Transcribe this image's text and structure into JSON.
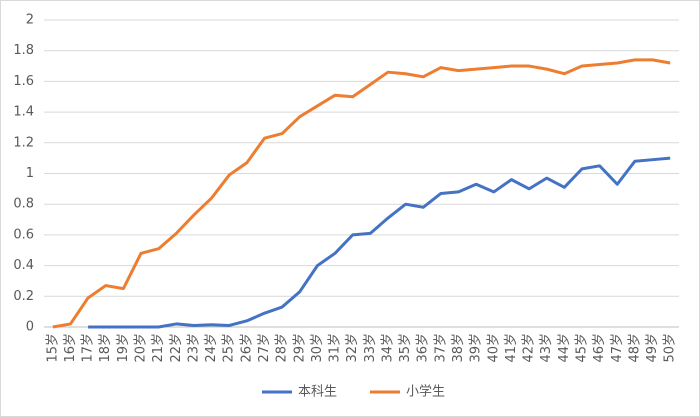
{
  "chart_data": {
    "type": "line",
    "categories": [
      "15岁",
      "16岁",
      "17岁",
      "18岁",
      "19岁",
      "20岁",
      "21岁",
      "22岁",
      "23岁",
      "24岁",
      "25岁",
      "26岁",
      "27岁",
      "28岁",
      "29岁",
      "30岁",
      "31岁",
      "32岁",
      "33岁",
      "34岁",
      "35岁",
      "36岁",
      "37岁",
      "38岁",
      "39岁",
      "40岁",
      "41岁",
      "42岁",
      "43岁",
      "44岁",
      "45岁",
      "46岁",
      "47岁",
      "48岁",
      "49岁",
      "50岁"
    ],
    "series": [
      {
        "name": "本科生",
        "color": "#4472c4",
        "values": [
          null,
          null,
          0,
          0,
          0,
          0,
          0,
          0.02,
          0.01,
          0.015,
          0.01,
          0.04,
          0.09,
          0.13,
          0.23,
          0.4,
          0.48,
          0.6,
          0.61,
          0.71,
          0.8,
          0.78,
          0.87,
          0.88,
          0.93,
          0.88,
          0.96,
          0.9,
          0.97,
          0.91,
          1.03,
          1.05,
          0.93,
          1.08,
          1.09,
          1.1
        ]
      },
      {
        "name": "小学生",
        "color": "#ed7d31",
        "values": [
          0,
          0.02,
          0.19,
          0.27,
          0.25,
          0.48,
          0.51,
          0.61,
          0.73,
          0.84,
          0.99,
          1.07,
          1.23,
          1.26,
          1.37,
          1.44,
          1.51,
          1.5,
          1.58,
          1.66,
          1.65,
          1.63,
          1.69,
          1.67,
          1.68,
          1.69,
          1.7,
          1.7,
          1.68,
          1.65,
          1.7,
          1.71,
          1.72,
          1.74,
          1.74,
          1.72
        ]
      }
    ],
    "ylim": [
      0,
      2
    ],
    "yticks": [
      0,
      0.2,
      0.4,
      0.6,
      0.8,
      1,
      1.2,
      1.4,
      1.6,
      1.8,
      2
    ],
    "grid": true,
    "legend": "bottom"
  }
}
